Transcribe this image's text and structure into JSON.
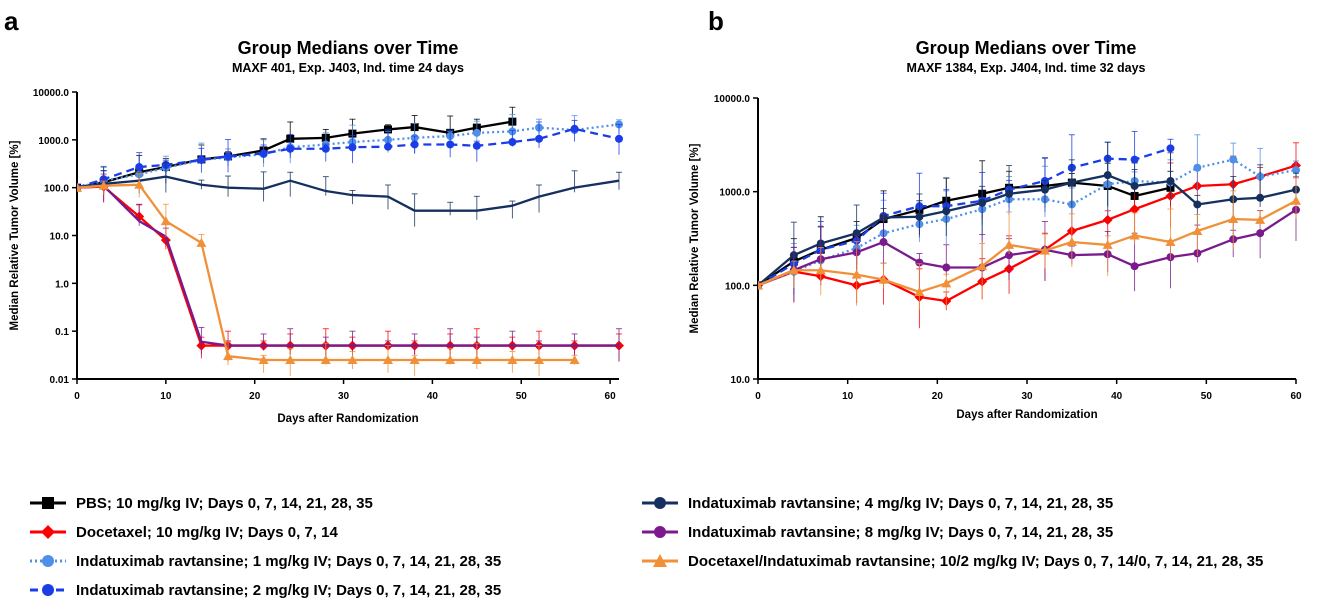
{
  "panels": {
    "a": "a",
    "b": "b"
  },
  "chart_data": [
    {
      "type": "line",
      "panel": "a",
      "title": "Group Medians over Time",
      "subtitle": "MAXF 401, Exp. J403, Ind. time 24 days",
      "xlabel": "Days after Randomization",
      "ylabel": "Median Relative Tumor Volume [%]",
      "xlim": [
        0,
        61
      ],
      "ylim": [
        0.01,
        10000
      ],
      "yscale": "log",
      "xticks": [
        "0",
        "10",
        "20",
        "30",
        "40",
        "50",
        "60"
      ],
      "yticks": [
        "0.01",
        "0.1",
        "1.0",
        "10.0",
        "100.0",
        "1000.0",
        "10000.0"
      ],
      "series": [
        {
          "name": "PBS; 10 mg/kg IV; Days 0, 7, 14, 21, 28, 35",
          "color": "#000000",
          "marker": "square",
          "dash": "solid",
          "x": [
            0,
            3,
            7,
            10,
            14,
            17,
            21,
            24,
            28,
            31,
            35,
            38,
            42,
            45,
            49
          ],
          "y": [
            100,
            130,
            210,
            270,
            390,
            450,
            600,
            1050,
            1100,
            1350,
            1650,
            1850,
            1400,
            1800,
            2400
          ]
        },
        {
          "name": "Docetaxel; 10 mg/kg IV; Days 0, 7, 14",
          "color": "#ff0000",
          "marker": "diamond",
          "dash": "solid",
          "x": [
            0,
            3,
            7,
            10,
            14,
            17,
            21,
            24,
            28,
            31,
            35,
            38,
            42,
            45,
            49,
            52,
            56,
            61
          ],
          "y": [
            100,
            105,
            25,
            8,
            0.05,
            0.05,
            0.05,
            0.05,
            0.05,
            0.05,
            0.05,
            0.05,
            0.05,
            0.05,
            0.05,
            0.05,
            0.05,
            0.05
          ]
        },
        {
          "name": "Indatuximab ravtansine; 1 mg/kg IV; Days 0, 7, 14, 21, 28, 35",
          "color": "#4f8fe8",
          "marker": "circle",
          "dash": "dot",
          "x": [
            0,
            3,
            7,
            10,
            14,
            17,
            21,
            24,
            28,
            31,
            35,
            38,
            42,
            45,
            49,
            52,
            56,
            61
          ],
          "y": [
            100,
            140,
            190,
            260,
            380,
            430,
            500,
            700,
            800,
            900,
            1000,
            1100,
            1200,
            1400,
            1500,
            1800,
            1600,
            2100
          ]
        },
        {
          "name": "Indatuximab ravtansine; 2 mg/kg IV; Days 0, 7, 14, 21, 28, 35",
          "color": "#1a3de8",
          "marker": "circle",
          "dash": "dash",
          "x": [
            0,
            3,
            7,
            10,
            14,
            17,
            21,
            24,
            28,
            31,
            35,
            38,
            42,
            45,
            49,
            52,
            56,
            61
          ],
          "y": [
            100,
            150,
            270,
            300,
            380,
            450,
            520,
            650,
            650,
            700,
            720,
            800,
            800,
            750,
            900,
            1050,
            1700,
            1050
          ]
        },
        {
          "name": "Indatuximab ravtansine; 4 mg/kg IV; Days 0, 7, 14, 21, 28, 35",
          "color": "#15305f",
          "marker": "none",
          "dash": "solid",
          "x": [
            0,
            3,
            7,
            10,
            14,
            17,
            21,
            24,
            28,
            31,
            35,
            38,
            42,
            45,
            49,
            52,
            56,
            61
          ],
          "y": [
            100,
            120,
            140,
            170,
            115,
            100,
            95,
            140,
            85,
            70,
            65,
            33,
            33,
            33,
            42,
            65,
            100,
            140
          ]
        },
        {
          "name": "Indatuximab ravtansine; 8 mg/kg IV; Days 0, 7, 14, 21, 28, 35",
          "color": "#7a1a8c",
          "marker": "none",
          "dash": "solid",
          "x": [
            0,
            3,
            7,
            10,
            14,
            17,
            21,
            24,
            28,
            31,
            35,
            38,
            42,
            45,
            49,
            52,
            56,
            61
          ],
          "y": [
            100,
            110,
            20,
            9.5,
            0.06,
            0.05,
            0.05,
            0.05,
            0.05,
            0.05,
            0.05,
            0.05,
            0.05,
            0.05,
            0.05,
            0.05,
            0.05,
            0.05
          ]
        },
        {
          "name": "Docetaxel/Indatuximab ravtansine; 10/2 mg/kg IV; Days 0, 7, 14/0, 7, 14, 21, 28, 35",
          "color": "#f0913a",
          "marker": "triangle",
          "dash": "solid",
          "x": [
            0,
            3,
            7,
            10,
            14,
            17,
            21,
            24,
            28,
            31,
            35,
            38,
            42,
            45,
            49,
            52,
            56
          ],
          "y": [
            100,
            110,
            115,
            20,
            7,
            0.03,
            0.025,
            0.025,
            0.025,
            0.025,
            0.025,
            0.025,
            0.025,
            0.025,
            0.025,
            0.025,
            0.025
          ]
        }
      ]
    },
    {
      "type": "line",
      "panel": "b",
      "title": "Group Medians over Time",
      "subtitle": "MAXF 1384, Exp. J404, Ind. time 32 days",
      "xlabel": "Days after Randomization",
      "ylabel": "Median Relative Tumor Volume [%]",
      "xlim": [
        0,
        60
      ],
      "ylim": [
        10,
        10000
      ],
      "yscale": "log",
      "xticks": [
        "0",
        "10",
        "20",
        "30",
        "40",
        "50",
        "60"
      ],
      "yticks": [
        "10.0",
        "100.0",
        "1000.0",
        "10000.0"
      ],
      "series": [
        {
          "name": "PBS; 10 mg/kg IV; Days 0, 7, 14, 21, 28, 35",
          "color": "#000000",
          "marker": "square",
          "dash": "solid",
          "x": [
            0,
            4,
            7,
            11,
            14,
            18,
            21,
            25,
            28,
            32,
            35,
            39,
            42,
            46
          ],
          "y": [
            100,
            180,
            240,
            320,
            510,
            640,
            800,
            950,
            1100,
            1150,
            1250,
            1150,
            900,
            1100
          ]
        },
        {
          "name": "Docetaxel; 10 mg/kg IV; Days 0, 7, 14",
          "color": "#ff0000",
          "marker": "diamond",
          "dash": "solid",
          "x": [
            0,
            4,
            7,
            11,
            14,
            18,
            21,
            25,
            28,
            32,
            35,
            39,
            42,
            46,
            49,
            53,
            56,
            60
          ],
          "y": [
            100,
            140,
            125,
            100,
            115,
            75,
            68,
            110,
            150,
            240,
            380,
            500,
            650,
            900,
            1150,
            1200,
            1450,
            1900
          ]
        },
        {
          "name": "Indatuximab ravtansine; 1 mg/kg IV; Days 0, 7, 14, 21, 28, 35",
          "color": "#4f8fe8",
          "marker": "circle",
          "dash": "dot",
          "x": [
            0,
            4,
            7,
            11,
            14,
            18,
            21,
            25,
            28,
            32,
            35,
            39,
            42,
            46,
            49,
            53,
            56,
            60
          ],
          "y": [
            100,
            140,
            185,
            250,
            360,
            450,
            510,
            650,
            830,
            830,
            730,
            1200,
            1300,
            1250,
            1800,
            2200,
            1450,
            1700
          ]
        },
        {
          "name": "Indatuximab ravtansine; 2 mg/kg IV; Days 0, 7, 14, 21, 28, 35",
          "color": "#1a3de8",
          "marker": "circle",
          "dash": "dash",
          "x": [
            0,
            4,
            7,
            11,
            14,
            18,
            21,
            25,
            28,
            32,
            35,
            39,
            42,
            46
          ],
          "y": [
            100,
            170,
            240,
            300,
            550,
            700,
            700,
            800,
            1050,
            1300,
            1800,
            2250,
            2200,
            2900
          ]
        },
        {
          "name": "Indatuximab ravtansine; 4 mg/kg IV; Days 0, 7, 14, 21, 28, 35",
          "color": "#15305f",
          "marker": "circle",
          "dash": "solid",
          "x": [
            0,
            4,
            7,
            11,
            14,
            18,
            21,
            25,
            28,
            32,
            35,
            39,
            42,
            46,
            49,
            53,
            56,
            60
          ],
          "y": [
            100,
            210,
            280,
            360,
            530,
            540,
            620,
            760,
            950,
            1050,
            1250,
            1500,
            1150,
            1300,
            730,
            830,
            860,
            1050
          ]
        },
        {
          "name": "Indatuximab ravtansine; 8 mg/kg IV; Days 0, 7, 14, 21, 28, 35",
          "color": "#7a1a8c",
          "marker": "circle",
          "dash": "solid",
          "x": [
            0,
            4,
            7,
            11,
            14,
            18,
            21,
            25,
            28,
            32,
            35,
            39,
            42,
            46,
            49,
            53,
            56,
            60
          ],
          "y": [
            100,
            145,
            190,
            225,
            290,
            175,
            155,
            155,
            210,
            240,
            210,
            215,
            160,
            200,
            220,
            310,
            360,
            640
          ]
        },
        {
          "name": "Docetaxel/Indatuximab ravtansine; 10/2 mg/kg IV; Days 0, 7, 14/0, 7, 14, 21, 28, 35",
          "color": "#f0913a",
          "marker": "triangle",
          "dash": "solid",
          "x": [
            0,
            4,
            7,
            11,
            14,
            18,
            21,
            25,
            28,
            32,
            35,
            39,
            42,
            46,
            49,
            53,
            56,
            60
          ],
          "y": [
            100,
            145,
            145,
            130,
            115,
            85,
            105,
            160,
            270,
            235,
            290,
            270,
            340,
            290,
            380,
            510,
            500,
            800
          ]
        }
      ]
    }
  ],
  "legend": [
    {
      "label": "PBS; 10 mg/kg IV; Days 0, 7, 14, 21, 28, 35",
      "color": "#000000",
      "marker": "square",
      "dash": "solid"
    },
    {
      "label": "Docetaxel; 10 mg/kg IV; Days 0, 7, 14",
      "color": "#ff0000",
      "marker": "diamond",
      "dash": "solid"
    },
    {
      "label": "Indatuximab ravtansine; 1 mg/kg IV; Days 0, 7, 14, 21, 28, 35",
      "color": "#4f8fe8",
      "marker": "circle",
      "dash": "dot"
    },
    {
      "label": "Indatuximab ravtansine; 2 mg/kg IV; Days 0, 7, 14, 21, 28, 35",
      "color": "#1a3de8",
      "marker": "circle",
      "dash": "dash"
    },
    {
      "label": "Indatuximab ravtansine; 4 mg/kg IV; Days 0, 7, 14, 21, 28, 35",
      "color": "#15305f",
      "marker": "circle",
      "dash": "solid"
    },
    {
      "label": "Indatuximab ravtansine; 8 mg/kg IV; Days 0, 7, 14, 21, 28, 35",
      "color": "#7a1a8c",
      "marker": "circle",
      "dash": "solid"
    },
    {
      "label": "Docetaxel/Indatuximab ravtansine; 10/2 mg/kg IV; Days 0, 7, 14/0, 7, 14, 21, 28, 35",
      "color": "#f0913a",
      "marker": "triangle",
      "dash": "solid"
    }
  ]
}
